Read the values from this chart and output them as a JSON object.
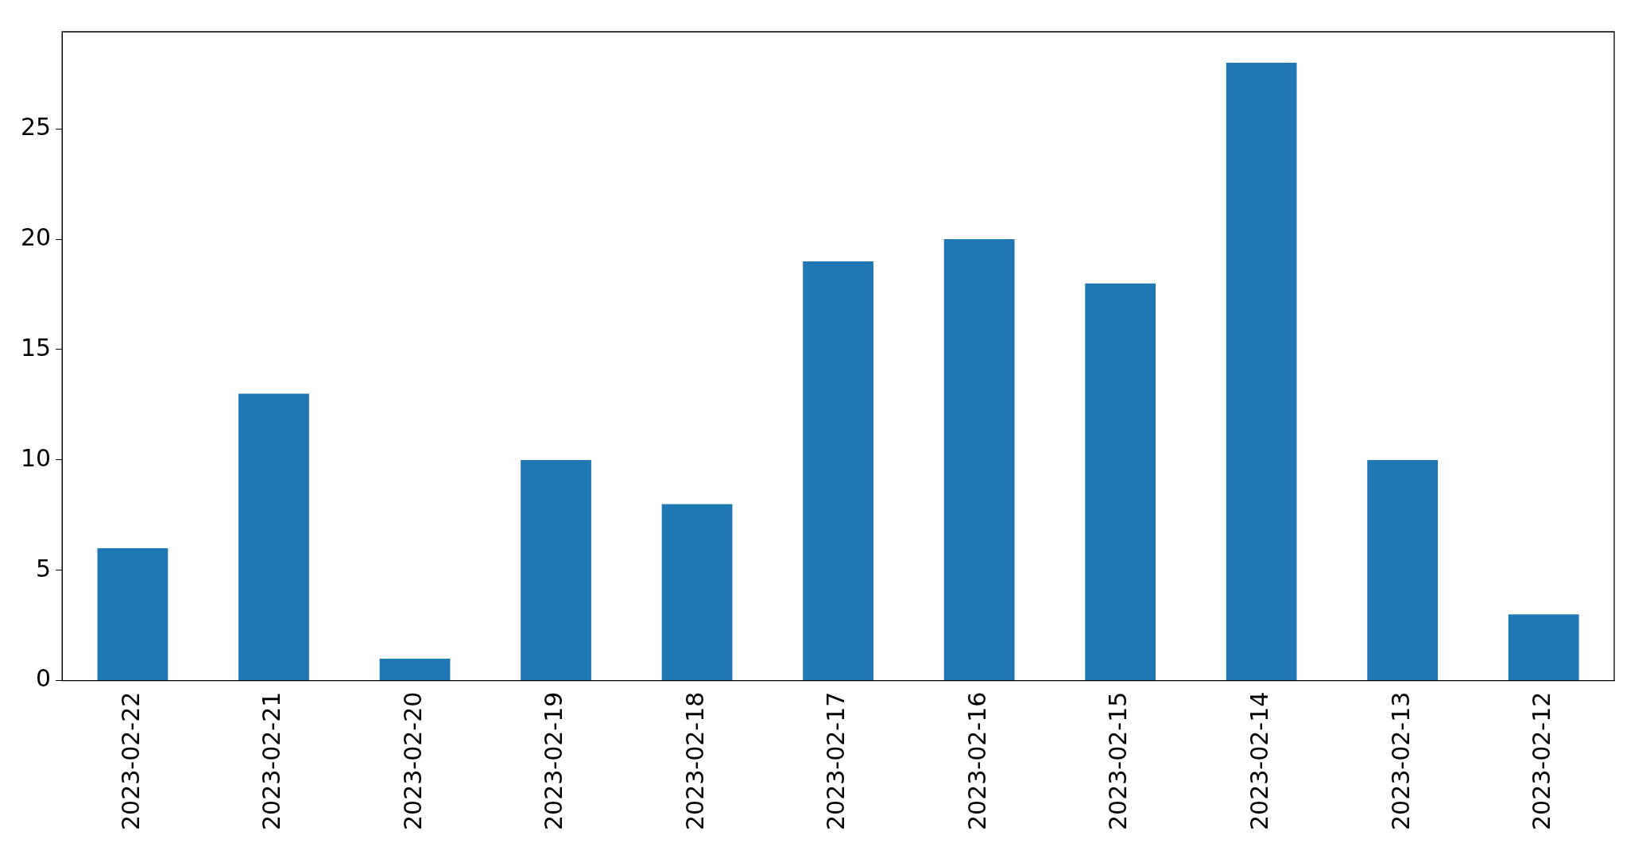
{
  "chart_data": {
    "type": "bar",
    "categories": [
      "2023-02-22",
      "2023-02-21",
      "2023-02-20",
      "2023-02-19",
      "2023-02-18",
      "2023-02-17",
      "2023-02-16",
      "2023-02-15",
      "2023-02-14",
      "2023-02-13",
      "2023-02-12"
    ],
    "values": [
      6,
      13,
      1,
      10,
      8,
      19,
      20,
      18,
      28,
      10,
      3
    ],
    "color": "#1f77b4",
    "ylim": [
      0,
      29.4
    ],
    "yticks": [
      0,
      5,
      10,
      15,
      20,
      25
    ],
    "grid": false,
    "legend": false
  }
}
